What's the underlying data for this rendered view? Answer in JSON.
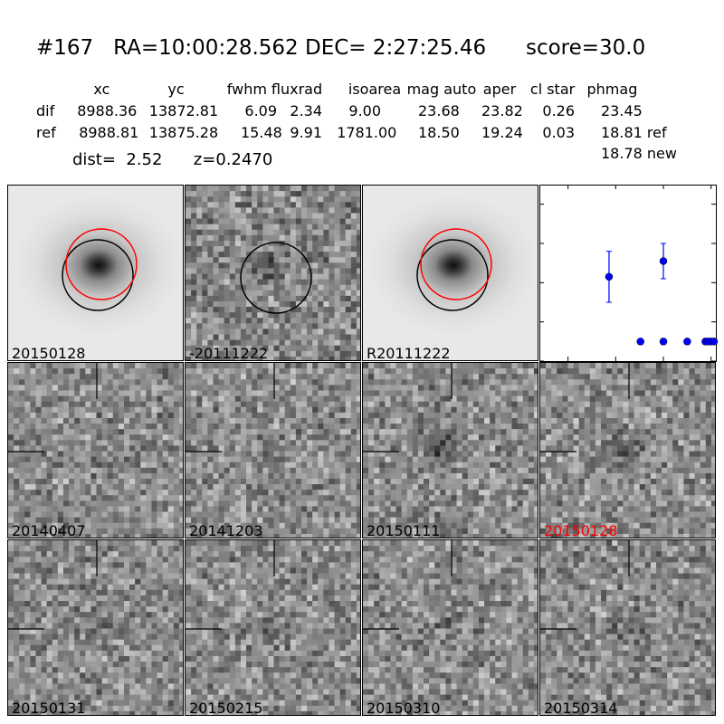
{
  "header": {
    "title": "#167   RA=10:00:28.562 DEC= 2:27:25.46      score=30.0",
    "columns": [
      "xc",
      "yc",
      "fwhm",
      "fluxrad",
      "isoarea",
      "mag auto",
      "aper",
      "cl star",
      "phmag"
    ],
    "rows": [
      {
        "label": "dif",
        "values": [
          "8988.36",
          "13872.81",
          "6.09",
          "2.34",
          "9.00",
          "23.68",
          "23.82",
          "0.26",
          "23.45"
        ]
      },
      {
        "label": "ref",
        "values": [
          "8988.81",
          "13875.28",
          "15.48",
          "9.91",
          "1781.00",
          "18.50",
          "19.24",
          "0.03",
          "18.81 ref"
        ]
      }
    ],
    "extra_phmag": "18.78 new",
    "dist_line": "dist=  2.52      z=0.2470"
  },
  "panels": [
    {
      "label": "20150128",
      "kind": "galaxy",
      "circles": [
        "black",
        "red"
      ]
    },
    {
      "label": "-20111222",
      "kind": "diff",
      "circles": [
        "black"
      ]
    },
    {
      "label": "R20111222",
      "kind": "galaxy",
      "circles": [
        "black",
        "red"
      ]
    },
    {
      "label": "20140407",
      "kind": "noise"
    },
    {
      "label": "20141203",
      "kind": "noise"
    },
    {
      "label": "20150111",
      "kind": "noise"
    },
    {
      "label": "20150128",
      "kind": "noise",
      "label_color": "#ff0000"
    },
    {
      "label": "20150131",
      "kind": "noise"
    },
    {
      "label": "20150215",
      "kind": "noise"
    },
    {
      "label": "20150310",
      "kind": "noise"
    },
    {
      "label": "20150314",
      "kind": "noise"
    }
  ],
  "chart_data": {
    "type": "scatter",
    "xlim": [
      -130,
      55
    ],
    "ylim": [
      26,
      21.5
    ],
    "xticks": [
      -100,
      -50,
      0,
      50
    ],
    "yticks": [
      22,
      23,
      24,
      25,
      26
    ],
    "marker_color": "#0000ff",
    "points": [
      {
        "x": -57,
        "y": 23.85,
        "err": 0.65
      },
      {
        "x": 0,
        "y": 23.45,
        "err": 0.45
      },
      {
        "x": -24,
        "y": 25.5,
        "limit": true
      },
      {
        "x": 0,
        "y": 25.5,
        "limit": true
      },
      {
        "x": 25,
        "y": 25.5,
        "limit": true
      },
      {
        "x": 44,
        "y": 25.5,
        "limit": true
      },
      {
        "x": 47,
        "y": 25.5,
        "limit": true
      },
      {
        "x": 50,
        "y": 25.5,
        "limit": true
      },
      {
        "x": 53,
        "y": 25.5,
        "limit": true
      }
    ]
  }
}
